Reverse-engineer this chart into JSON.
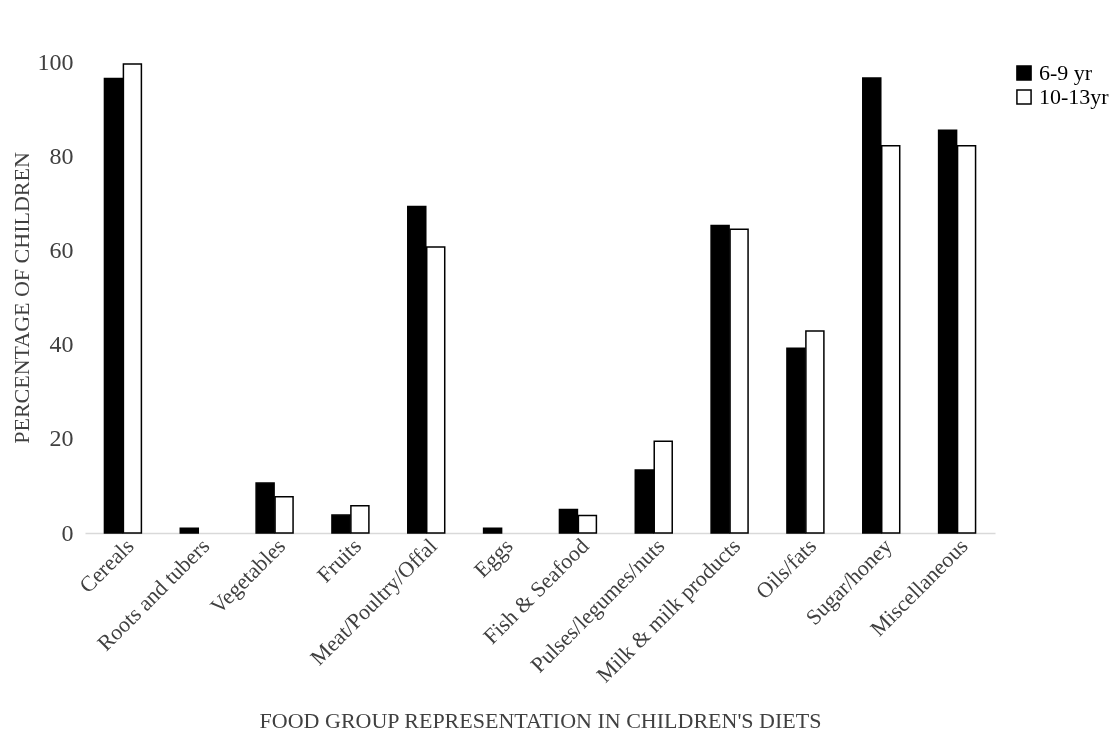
{
  "chart_data": {
    "type": "bar",
    "xlabel": "FOOD GROUP REPRESENTATION IN CHILDREN'S DIETS",
    "ylabel": "PERCENTAGE OF CHILDREN",
    "categories": [
      "Cereals",
      "Roots and tubers",
      "Vegetables",
      "Fruits",
      "Meat/Poultry/Offal",
      "Eggs",
      "Fish & Seafood",
      "Pulses/legumes/nuts",
      "Milk & milk products",
      "Oils/fats",
      "Sugar/honey",
      "Miscellaneous"
    ],
    "series": [
      {
        "name": "6-9 yr",
        "color": "#000000",
        "values": [
          96.5,
          1.0,
          10.6,
          3.8,
          69.3,
          1.0,
          5.0,
          13.4,
          65.3,
          39.2,
          96.6,
          85.5
        ]
      },
      {
        "name": "10-13yr",
        "color": "#ffffff",
        "values": [
          99.6,
          null,
          7.7,
          5.8,
          60.7,
          null,
          3.7,
          19.5,
          64.5,
          42.9,
          82.2,
          82.2
        ]
      }
    ],
    "ylim": [
      0,
      100
    ],
    "yticks": [
      0,
      20,
      40,
      60,
      80,
      100
    ],
    "grid": false,
    "legend": "right"
  }
}
